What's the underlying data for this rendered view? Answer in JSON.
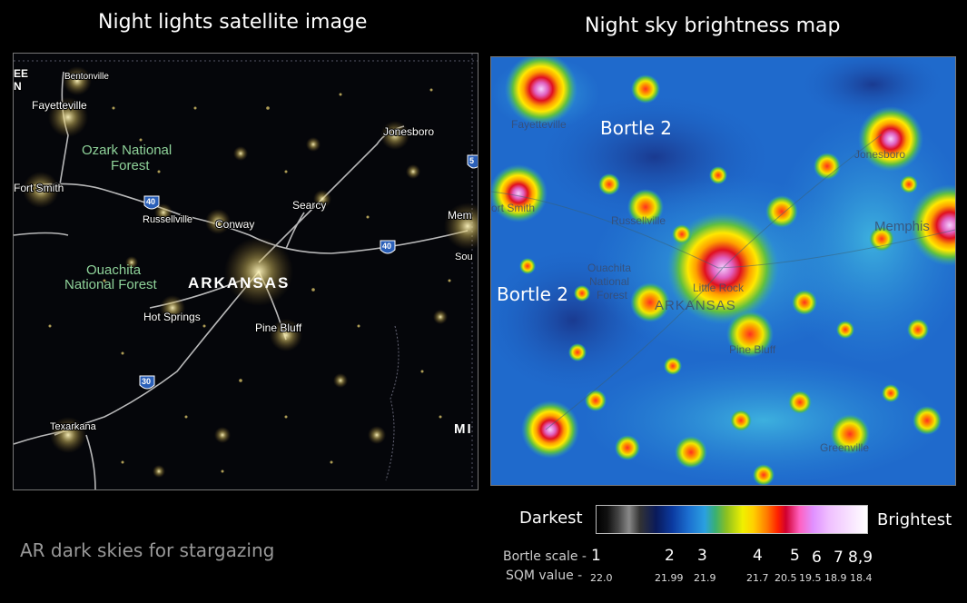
{
  "left_title": "Night lights satellite image",
  "right_title": "Night sky brightness map",
  "caption": "AR dark skies for stargazing",
  "left_map": {
    "labels": {
      "bentonville": "Bentonville",
      "fayetteville": "Fayetteville",
      "ozark": [
        "Ozark National",
        "Forest"
      ],
      "fort_smith": "Fort Smith",
      "russellville": "Russellville",
      "conway": "Conway",
      "searcy": "Searcy",
      "jonesboro": "Jonesboro",
      "memphis": "Mem",
      "southaven": "Sou",
      "ouachita": [
        "Ouachita",
        "National Forest"
      ],
      "arkansas": "ARKANSAS",
      "hot_springs": "Hot Springs",
      "pine_bluff": "Pine Bluff",
      "texarkana": "Texarkana",
      "mi": "MI",
      "ee": "EE",
      "n": "N"
    },
    "shields": {
      "i40_west": "40",
      "i40_east": "40",
      "i30": "30",
      "edge": "5"
    }
  },
  "right_map": {
    "labels": {
      "fayetteville": "Fayetteville",
      "fort_smith": "ort Smith",
      "russellville": "Russellville",
      "jonesboro": "Jonesboro",
      "memphis": "Memphis",
      "ouachita": [
        "Ouachita",
        "National",
        "Forest"
      ],
      "little_rock": "Little Rock",
      "arkansas": "ARKANSAS",
      "pine_bluff": "Pine Bluff",
      "greenville": "Greenville"
    },
    "bortle_north": "Bortle 2",
    "bortle_west": "Bortle 2"
  },
  "legend": {
    "darkest": "Darkest",
    "brightest": "Brightest",
    "bortle_label": "Bortle scale -",
    "sqm_label": "SQM value -",
    "bortle_values": [
      "1",
      "2",
      "3",
      "4",
      "5",
      "6",
      "7",
      "8,9"
    ],
    "sqm_values": [
      "22.0",
      "21.99",
      "21.9",
      "21.7",
      "20.5",
      "19.5",
      "18.9",
      "18.4"
    ]
  }
}
